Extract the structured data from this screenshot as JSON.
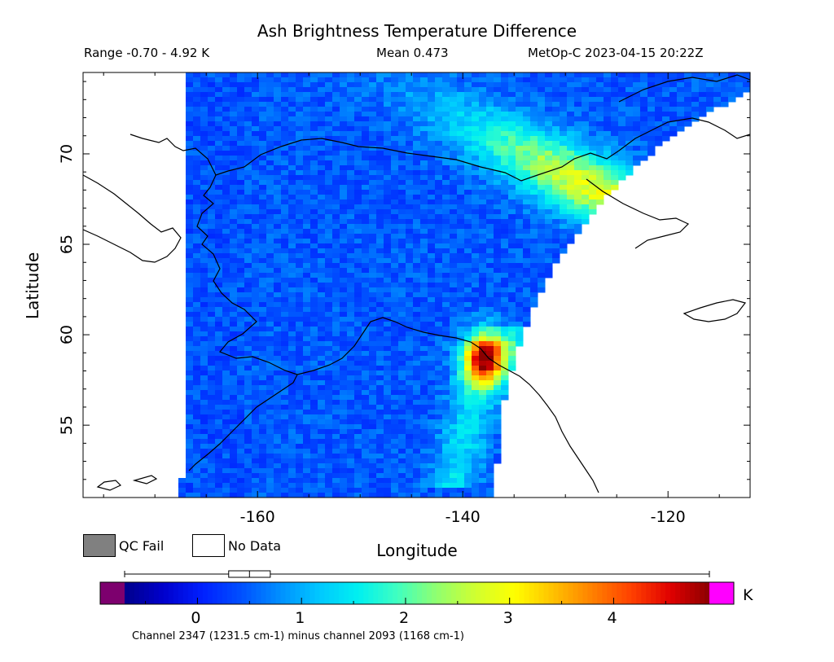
{
  "header": {
    "title": "Ash Brightness Temperature Difference",
    "range": "Range -0.70 - 4.92 K",
    "mean": "Mean 0.473",
    "source": "MetOp-C 2023-04-15 20:22Z"
  },
  "legend": {
    "qc_fail": "QC Fail",
    "no_data": "No Data",
    "qc_fail_color": "#808080",
    "no_data_color": "#ffffff"
  },
  "colorbar": {
    "unit": "K",
    "ticks": [
      "0",
      "1",
      "2",
      "3",
      "4"
    ],
    "footer": "Channel 2347 (1231.5 cm-1) minus channel 2093 (1168 cm-1)",
    "under_color": "#7d006e",
    "over_color": "#ff00ff",
    "colors": [
      "#00008b",
      "#0000cd",
      "#0020ff",
      "#0050ff",
      "#0090ff",
      "#00c8ff",
      "#00f0f0",
      "#40ffc0",
      "#90ff70",
      "#d0ff30",
      "#ffff00",
      "#ffc000",
      "#ff8000",
      "#ff4000",
      "#e00000",
      "#8b0000"
    ]
  },
  "chart_data": {
    "type": "heatmap",
    "title": "Ash Brightness Temperature Difference",
    "xlabel": "Longitude",
    "ylabel": "Latitude",
    "xlim": [
      -177,
      -112
    ],
    "ylim": [
      51,
      74.5
    ],
    "xticks": [
      -160,
      -140,
      -120
    ],
    "yticks": [
      55,
      60,
      65,
      70
    ],
    "xtick_labels": [
      "-160",
      "-140",
      "-120"
    ],
    "ytick_labels": [
      "55",
      "60",
      "65",
      "70"
    ],
    "value_range": [
      -0.7,
      4.92
    ],
    "mean": 0.473,
    "colorbar_range": [
      -0.7,
      4.92
    ],
    "colorbar_ticks": [
      0,
      1,
      2,
      3,
      4
    ],
    "boxplot": {
      "whisker_low": -0.7,
      "q1": 0.3,
      "median": 0.5,
      "q3": 0.7,
      "whisker_high": 4.92
    },
    "features": [
      {
        "description": "max hotspot",
        "lon": -139.5,
        "lat": 59.3,
        "value": 4.5
      },
      {
        "description": "secondary hotspot",
        "lon": -139.0,
        "lat": 58.0,
        "value": 4.0
      },
      {
        "description": "elongated plume",
        "lon": -127,
        "lat": 68,
        "value": 3.0
      }
    ]
  }
}
